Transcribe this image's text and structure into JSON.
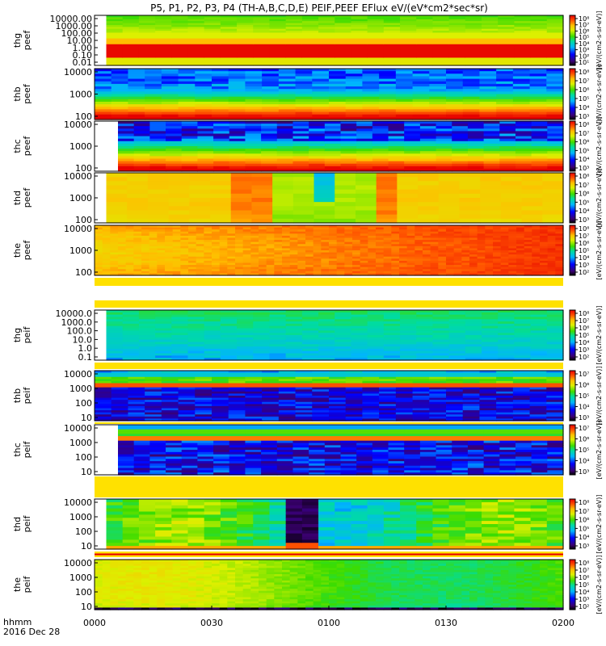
{
  "chart_data": {
    "type": "heatmap",
    "title": "P5, P1, P2, P3, P4 (TH-A,B,C,D,E) PEIF,PEEF EFlux eV/(eV*cm2*sec*sr)",
    "x_ticks": [
      "0000",
      "0030",
      "0100",
      "0130",
      "0200"
    ],
    "x_range": [
      "00:00",
      "02:00"
    ],
    "x_label_left": [
      "hhmm",
      "2016 Dec 28"
    ],
    "colorbar_title": "[eV/(cm2-s-sr-eV)]",
    "panels": [
      {
        "ylabel": [
          "thg",
          "peef"
        ],
        "y_ticks": [
          "10000.00",
          "1000.00",
          "100.00",
          "10.00",
          "1.00",
          "0.10",
          "0.01"
        ],
        "cbar_ticks": [
          "10⁸",
          "10⁷",
          "10⁶",
          "10⁵",
          "10⁴",
          "10³",
          "10²",
          "10¹"
        ],
        "data_start_hhmm": "00:03"
      },
      {
        "ylabel": [
          "thb",
          "peef"
        ],
        "y_ticks": [
          "10000",
          "1000",
          "100"
        ],
        "cbar_ticks": [
          "10⁸",
          "10⁷",
          "10⁶",
          "10⁵",
          "10⁴",
          "10³"
        ],
        "data_start_hhmm": "00:00"
      },
      {
        "ylabel": [
          "thc",
          "peef"
        ],
        "y_ticks": [
          "10000",
          "1000",
          "100"
        ],
        "cbar_ticks": [
          "10⁸",
          "10⁷",
          "10⁶",
          "10⁵",
          "10⁴",
          "10³"
        ],
        "data_start_hhmm": "00:06"
      },
      {
        "ylabel": [
          "thd",
          "peef"
        ],
        "y_ticks": [
          "10000",
          "1000",
          "100"
        ],
        "cbar_ticks": [
          "10⁸",
          "10⁷",
          "10⁶",
          "10⁵",
          "10⁴",
          "10³"
        ],
        "data_start_hhmm": "00:03"
      },
      {
        "ylabel": [
          "the",
          "peef"
        ],
        "y_ticks": [
          "10000",
          "1000",
          "100"
        ],
        "cbar_ticks": [
          "10⁸",
          "10⁷",
          "10⁶",
          "10⁵",
          "10⁴",
          "10³",
          "10²"
        ],
        "data_start_hhmm": "00:00"
      },
      {
        "ylabel": [
          "thg",
          "peif"
        ],
        "y_ticks": [
          "10000.0",
          "1000.0",
          "100.0",
          "10.0",
          "1.0",
          "0.1"
        ],
        "cbar_ticks": [
          "10⁸",
          "10⁷",
          "10⁶",
          "10⁵",
          "10⁴",
          "10³",
          "10²"
        ],
        "data_start_hhmm": "00:03"
      },
      {
        "ylabel": [
          "thb",
          "peif"
        ],
        "y_ticks": [
          "10000",
          "1000",
          "100",
          "10"
        ],
        "cbar_ticks": [
          "10⁷",
          "10⁶",
          "10⁵",
          "10⁴",
          "10³"
        ],
        "data_start_hhmm": "00:00"
      },
      {
        "ylabel": [
          "thc",
          "peif"
        ],
        "y_ticks": [
          "10000",
          "1000",
          "100",
          "10"
        ],
        "cbar_ticks": [
          "10⁷",
          "10⁶",
          "10⁵",
          "10⁴",
          "10³"
        ],
        "data_start_hhmm": "00:06"
      },
      {
        "ylabel": [
          "thd",
          "peif"
        ],
        "y_ticks": [
          "10000",
          "1000",
          "100",
          "10"
        ],
        "cbar_ticks": [
          "10⁸",
          "10⁷",
          "10⁶",
          "10⁵",
          "10⁴",
          "10³"
        ],
        "data_start_hhmm": "00:03"
      },
      {
        "ylabel": [
          "the",
          "peif"
        ],
        "y_ticks": [
          "10000",
          "1000",
          "100",
          "10"
        ],
        "cbar_ticks": [
          "10⁸",
          "10⁷",
          "10⁶",
          "10⁵",
          "10⁴",
          "10³",
          "10²"
        ],
        "data_start_hhmm": "00:00"
      }
    ]
  }
}
